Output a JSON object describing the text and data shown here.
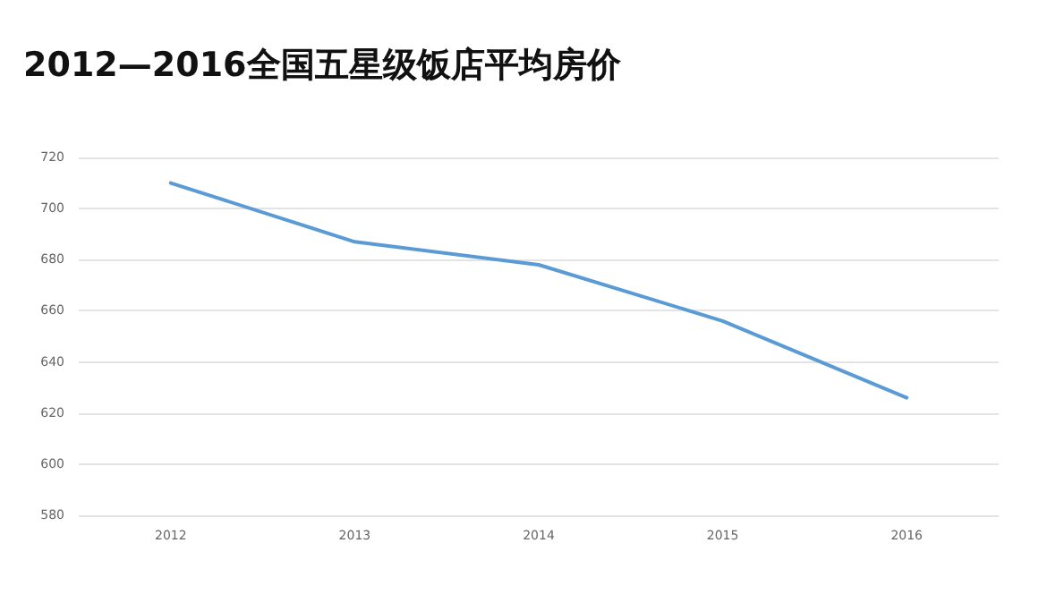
{
  "chart_data": {
    "type": "line",
    "title": "2012—2016全国五星级饭店平均房价",
    "categories": [
      "2012",
      "2013",
      "2014",
      "2015",
      "2016"
    ],
    "series": [
      {
        "color": "#5b9bd5",
        "values": [
          710,
          687,
          678,
          656,
          626
        ]
      }
    ],
    "ylim": [
      580,
      720
    ],
    "yticks": [
      580,
      600,
      620,
      640,
      660,
      680,
      700,
      720
    ],
    "grid": "y",
    "marker": "none",
    "line_style": "solid"
  }
}
